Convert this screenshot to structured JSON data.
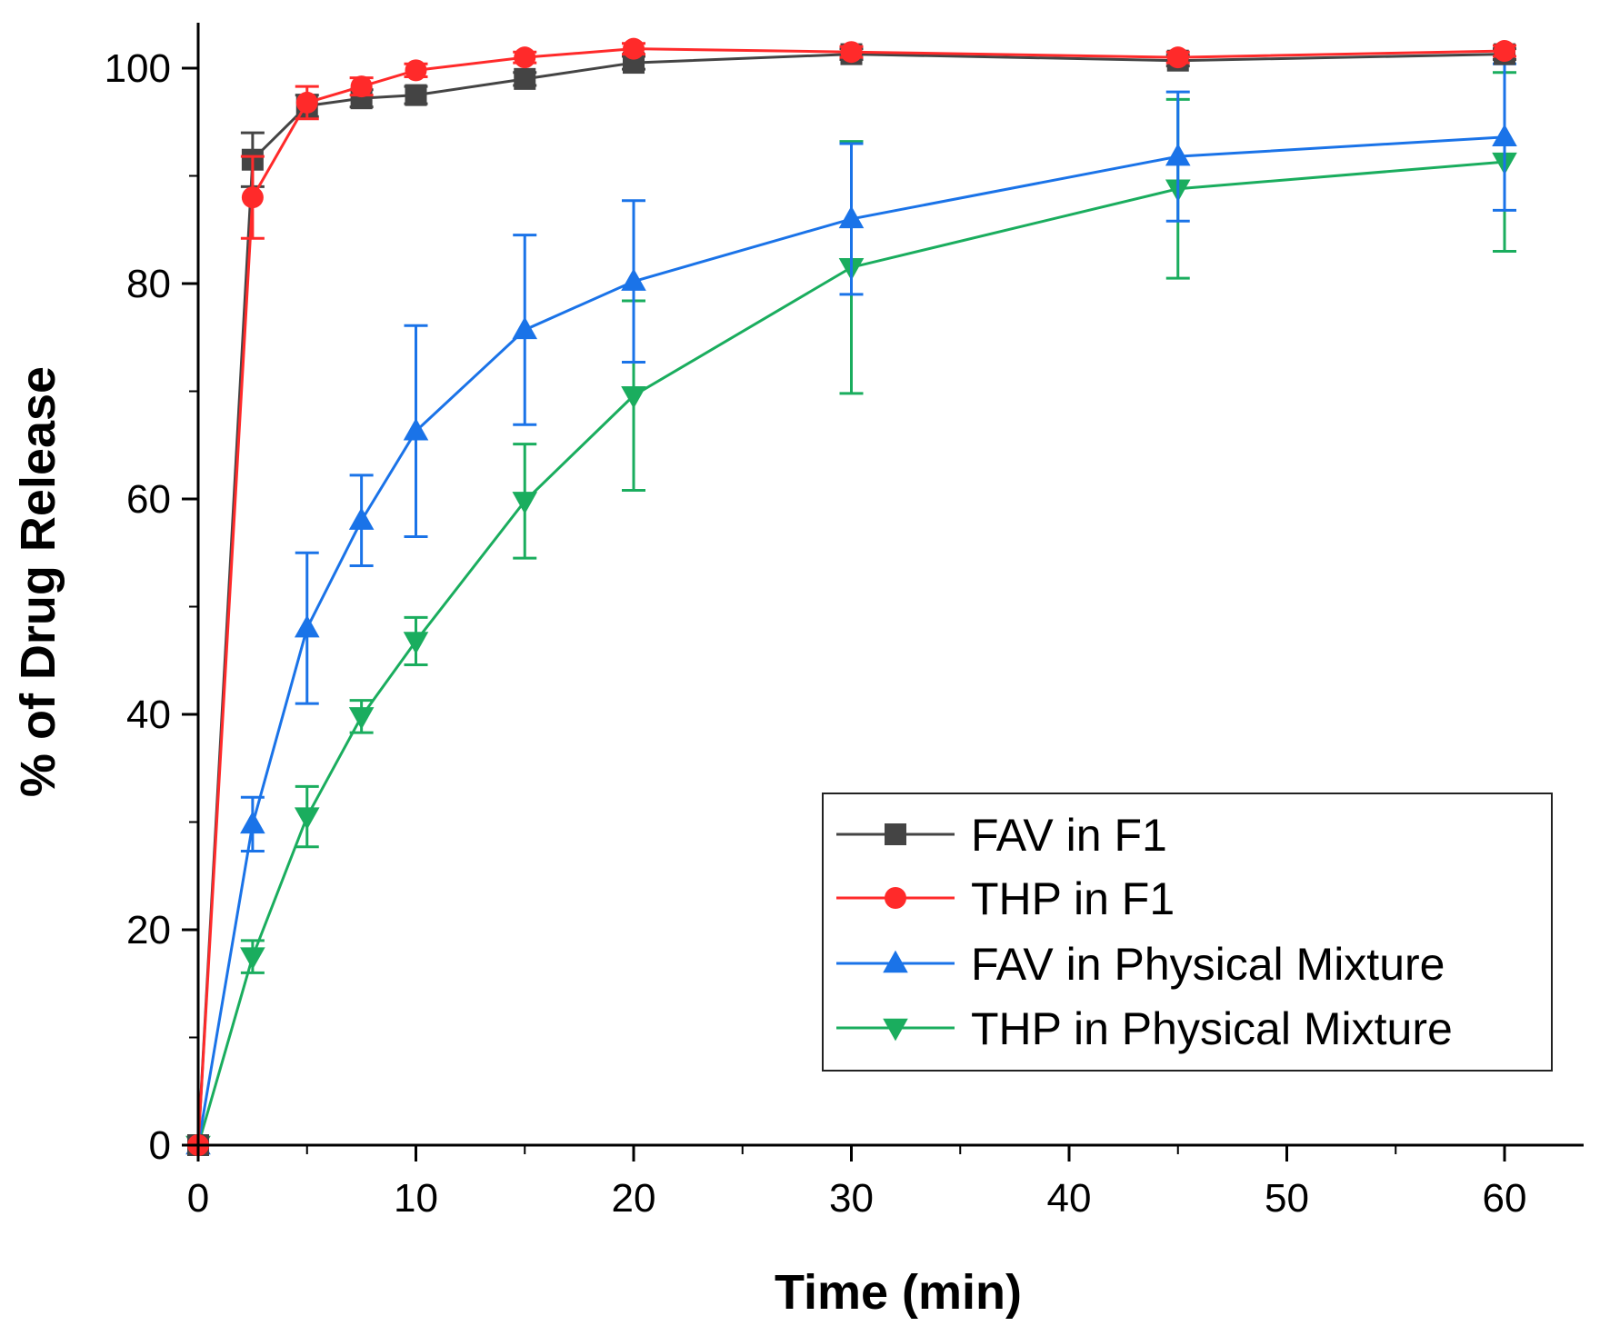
{
  "chart_data": {
    "type": "line",
    "title": "",
    "xlabel": "Time (min)",
    "ylabel": "% of Drug Release",
    "xlim": [
      0,
      63
    ],
    "ylim": [
      0,
      104
    ],
    "xticks": [
      0,
      10,
      20,
      30,
      40,
      50,
      60
    ],
    "yticks": [
      0,
      20,
      40,
      60,
      80,
      100
    ],
    "x_tick_labels": [
      "0",
      "10",
      "20",
      "30",
      "40",
      "50",
      "60"
    ],
    "y_tick_labels": [
      "0",
      "20",
      "40",
      "60",
      "80",
      "100"
    ],
    "legend_position": "bottom-right",
    "grid": false,
    "series": [
      {
        "name": "FAV in F1",
        "color": "#444444",
        "marker": "square",
        "x": [
          0,
          2.5,
          5,
          7.5,
          10,
          15,
          20,
          30,
          45,
          60
        ],
        "y": [
          0,
          91.5,
          96.5,
          97.2,
          97.5,
          99.0,
          100.5,
          101.3,
          100.7,
          101.3
        ],
        "err": [
          0,
          2.5,
          1.0,
          0.8,
          0.8,
          0.6,
          0.6,
          0.5,
          0.5,
          0.5
        ]
      },
      {
        "name": "THP in F1",
        "color": "#ff2a2a",
        "marker": "circle",
        "x": [
          0,
          2.5,
          5,
          7.5,
          10,
          15,
          20,
          30,
          45,
          60
        ],
        "y": [
          0,
          88.0,
          96.8,
          98.3,
          99.8,
          101.0,
          101.8,
          101.5,
          101.0,
          101.6
        ],
        "err": [
          0,
          3.8,
          1.5,
          0.8,
          0.6,
          0.5,
          0.5,
          0.5,
          0.5,
          0.5
        ]
      },
      {
        "name": "FAV in Physical Mixture",
        "color": "#1a73e8",
        "marker": "triangle-up",
        "x": [
          0,
          2.5,
          5,
          7.5,
          10,
          15,
          20,
          30,
          45,
          60
        ],
        "y": [
          0,
          29.8,
          48.0,
          58.0,
          66.3,
          75.7,
          80.2,
          86.0,
          91.8,
          93.6
        ],
        "err": [
          0,
          2.5,
          7.0,
          4.2,
          9.8,
          8.8,
          7.5,
          7.0,
          6.0,
          6.8
        ]
      },
      {
        "name": "THP in Physical Mixture",
        "color": "#1aad5e",
        "marker": "triangle-down",
        "x": [
          0,
          2.5,
          5,
          7.5,
          10,
          15,
          20,
          30,
          45,
          60
        ],
        "y": [
          0,
          17.5,
          30.5,
          39.8,
          46.8,
          59.8,
          69.6,
          81.5,
          88.8,
          91.3
        ],
        "err": [
          0,
          1.5,
          2.8,
          1.5,
          2.2,
          5.3,
          8.8,
          11.7,
          8.3,
          8.3
        ]
      }
    ]
  }
}
